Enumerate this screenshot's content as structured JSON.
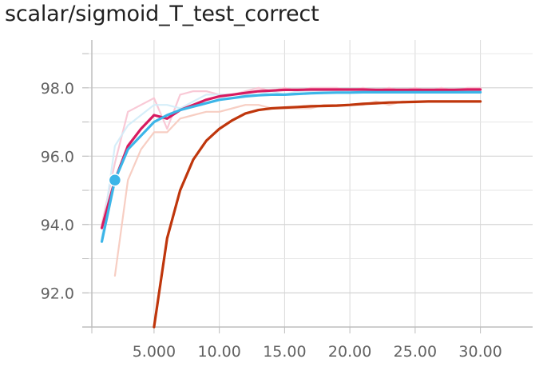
{
  "chart_data": {
    "type": "line",
    "title": "scalar/sigmoid_T_test_correct",
    "xlabel": "",
    "ylabel": "",
    "xlim": [
      -0.5,
      34
    ],
    "ylim": [
      91,
      99.4
    ],
    "x_ticks": [
      5,
      10,
      15,
      20,
      25,
      30
    ],
    "x_tick_labels": [
      "5.000",
      "10.00",
      "15.00",
      "20.00",
      "25.00",
      "30.00"
    ],
    "y_ticks": [
      92,
      94,
      96,
      98
    ],
    "y_tick_labels": [
      "92.0",
      "94.0",
      "96.0",
      "98.0"
    ],
    "y_minor_ticks": [
      93,
      95,
      97,
      99
    ],
    "grid": true,
    "legend": "none",
    "series": [
      {
        "color": "#f6c9bd",
        "opacity": 0.9,
        "width": 2.2,
        "raw": true,
        "x": [
          2,
          3,
          4,
          5,
          6,
          7,
          8,
          9,
          10,
          11,
          12,
          13,
          14,
          15,
          16,
          17,
          18,
          19,
          20,
          21,
          22,
          23,
          24,
          25,
          26,
          27,
          28,
          29,
          30
        ],
        "y": [
          92.5,
          95.3,
          96.2,
          96.7,
          96.7,
          97.1,
          97.2,
          97.3,
          97.3,
          97.4,
          97.5,
          97.5,
          97.4,
          97.4,
          97.4,
          97.4,
          97.5,
          97.5,
          97.5,
          97.5,
          97.6,
          97.5,
          97.6,
          97.6,
          97.6,
          97.6,
          97.6,
          97.6,
          97.6
        ]
      },
      {
        "color": "#f8c3d2",
        "opacity": 0.9,
        "width": 2.2,
        "raw": true,
        "x": [
          1,
          2,
          3,
          4,
          5,
          6,
          7,
          8,
          9,
          10,
          11,
          12,
          13,
          14,
          15,
          16,
          17,
          18,
          19,
          20,
          21,
          22,
          23,
          24,
          25,
          26,
          27,
          28,
          29,
          30
        ],
        "y": [
          94.0,
          95.8,
          97.3,
          97.5,
          97.7,
          96.8,
          97.8,
          97.9,
          97.9,
          97.8,
          97.8,
          97.9,
          98.0,
          97.9,
          98.0,
          97.9,
          98.0,
          98.0,
          98.0,
          97.9,
          98.0,
          97.9,
          98.0,
          97.9,
          98.0,
          97.9,
          98.0,
          97.9,
          98.0,
          98.0
        ]
      },
      {
        "color": "#d1ecf8",
        "opacity": 0.9,
        "width": 2.2,
        "raw": true,
        "x": [
          1,
          2,
          3,
          4,
          5,
          6,
          7,
          8,
          9,
          10,
          11,
          12,
          13,
          14,
          15,
          16,
          17,
          18,
          19,
          20,
          21,
          22,
          23,
          24,
          25,
          26,
          27,
          28,
          29,
          30
        ],
        "y": [
          93.6,
          96.3,
          96.9,
          97.2,
          97.5,
          97.5,
          97.4,
          97.6,
          97.8,
          97.8,
          97.8,
          97.8,
          97.8,
          97.9,
          97.8,
          97.9,
          97.9,
          97.9,
          97.9,
          97.9,
          97.9,
          97.9,
          97.9,
          97.9,
          97.9,
          97.9,
          97.9,
          97.9,
          97.9,
          97.9
        ]
      },
      {
        "color": "#d81b60",
        "opacity": 1,
        "width": 3.2,
        "raw": false,
        "x": [
          1,
          2,
          3,
          4,
          5,
          6,
          7,
          8,
          9,
          10,
          11,
          12,
          13,
          14,
          15,
          16,
          17,
          18,
          19,
          20,
          21,
          22,
          23,
          24,
          25,
          26,
          27,
          28,
          29,
          30
        ],
        "y": [
          93.9,
          95.3,
          96.3,
          96.8,
          97.2,
          97.1,
          97.35,
          97.5,
          97.65,
          97.75,
          97.8,
          97.85,
          97.9,
          97.92,
          97.94,
          97.94,
          97.95,
          97.95,
          97.95,
          97.95,
          97.95,
          97.94,
          97.94,
          97.94,
          97.94,
          97.94,
          97.94,
          97.94,
          97.95,
          97.95
        ]
      },
      {
        "color": "#3cb5e8",
        "opacity": 1,
        "width": 3.2,
        "raw": false,
        "x": [
          1,
          2,
          3,
          4,
          5,
          6,
          7,
          8,
          9,
          10,
          11,
          12,
          13,
          14,
          15,
          16,
          17,
          18,
          19,
          20,
          21,
          22,
          23,
          24,
          25,
          26,
          27,
          28,
          29,
          30
        ],
        "y": [
          93.5,
          95.3,
          96.2,
          96.6,
          97.0,
          97.2,
          97.35,
          97.45,
          97.55,
          97.65,
          97.7,
          97.75,
          97.78,
          97.8,
          97.8,
          97.82,
          97.84,
          97.85,
          97.86,
          97.86,
          97.87,
          97.87,
          97.87,
          97.87,
          97.87,
          97.87,
          97.87,
          97.87,
          97.87,
          97.87
        ]
      },
      {
        "color": "#bf360c",
        "opacity": 1,
        "width": 3.2,
        "raw": false,
        "x": [
          5,
          6,
          7,
          8,
          9,
          10,
          11,
          12,
          13,
          14,
          15,
          16,
          17,
          18,
          19,
          20,
          21,
          22,
          23,
          24,
          25,
          26,
          27,
          28,
          29,
          30
        ],
        "y": [
          91.0,
          93.6,
          95.0,
          95.9,
          96.45,
          96.8,
          97.05,
          97.25,
          97.35,
          97.4,
          97.42,
          97.44,
          97.46,
          97.47,
          97.48,
          97.5,
          97.53,
          97.55,
          97.57,
          97.58,
          97.59,
          97.6,
          97.6,
          97.6,
          97.6,
          97.6
        ]
      }
    ],
    "marker": {
      "x": 2,
      "y": 95.3,
      "color": "#3cb5e8"
    }
  }
}
